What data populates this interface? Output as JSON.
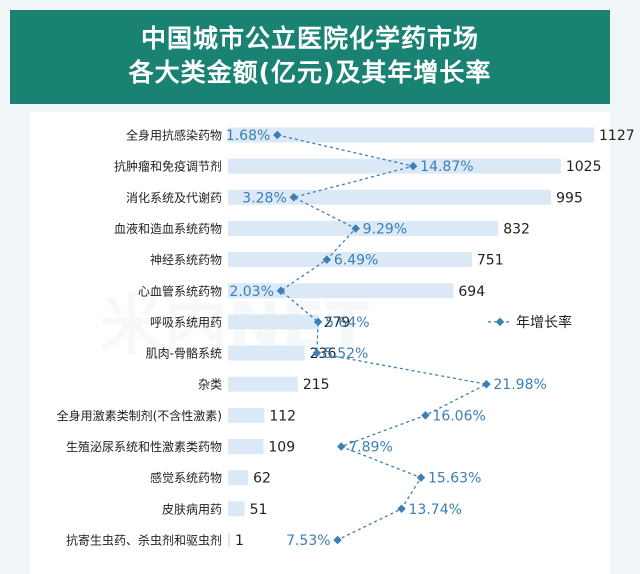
{
  "title_line1": "中国城市公立医院化学药市场",
  "title_line2": "各大类金额(亿元)及其年增长率",
  "watermark": "米内NET",
  "colors": {
    "header_bg": "#1a8272",
    "bar": "#dbe9f6",
    "line": "#3b7fb5",
    "growth_text": "#3b7fb5",
    "value_text": "#222222"
  },
  "chart_data": {
    "type": "bar",
    "orientation": "horizontal",
    "categories": [
      "全身用抗感染药物",
      "抗肿瘤和免疫调节剂",
      "消化系统及代谢药",
      "血液和造血系统药物",
      "神经系统药物",
      "心血管系统药物",
      "呼吸系统用药",
      "肌肉-骨骼系统",
      "杂类",
      "全身用激素类制剂(不含性激素)",
      "生殖泌尿系统和性激素类药物",
      "感觉系统药物",
      "皮肤病用药",
      "抗寄生虫药、杀虫剂和驱虫剂"
    ],
    "series": [
      {
        "values": [
          1127,
          1025,
          995,
          832,
          751,
          694,
          279,
          236,
          215,
          112,
          109,
          62,
          51,
          1
        ],
        "value_labels": [
          "1127",
          "1025",
          "995",
          "832",
          "751",
          "694",
          "279",
          "236",
          "215",
          "112",
          "109",
          "62",
          "51",
          "1"
        ]
      },
      {
        "name": "年增长率",
        "type": "line",
        "values": [
          1.68,
          14.87,
          3.28,
          9.29,
          6.49,
          2.03,
          5.64,
          5.52,
          21.98,
          16.06,
          7.89,
          15.63,
          13.74,
          7.53
        ],
        "value_labels": [
          "1.68%",
          "14.87%",
          "3.28%",
          "9.29%",
          "6.49%",
          "2.03%",
          "5.64%",
          "5.52%",
          "21.98%",
          "16.06%",
          "7.89%",
          "15.63%",
          "13.74%",
          "7.53%"
        ]
      }
    ],
    "legend": {
      "label": "年增长率",
      "position": "right"
    },
    "grid": false
  }
}
